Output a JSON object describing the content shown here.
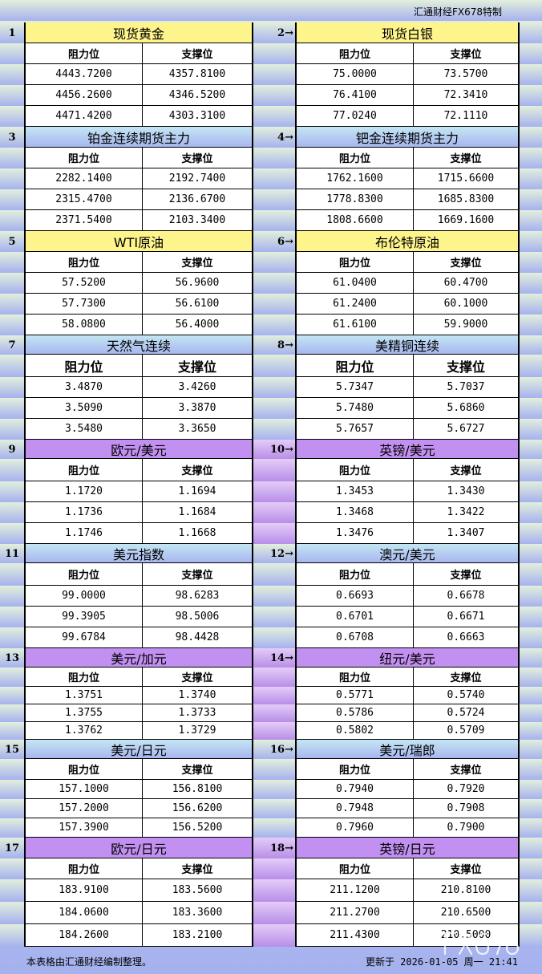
{
  "header": {
    "brand": "汇通财经FX678特制"
  },
  "col_headers": {
    "resistance": "阻力位",
    "support": "支撑位"
  },
  "colors": {
    "yellow": "#fdf48c",
    "blue": "#b4cef2",
    "purple": "#c290f0"
  },
  "blocks": [
    {
      "num": "1",
      "name": "现货黄金",
      "color": "yellow",
      "r": [
        "4443.7200",
        "4456.2600",
        "4471.4200"
      ],
      "s": [
        "4357.8100",
        "4346.5200",
        "4303.3100"
      ]
    },
    {
      "num": "2→",
      "name": "现货白银",
      "color": "yellow",
      "r": [
        "75.0000",
        "76.4100",
        "77.0240"
      ],
      "s": [
        "73.5700",
        "72.3410",
        "72.1110"
      ]
    },
    {
      "num": "3",
      "name": "铂金连续期货主力",
      "color": "blue",
      "r": [
        "2282.1400",
        "2315.4700",
        "2371.5400"
      ],
      "s": [
        "2192.7400",
        "2136.6700",
        "2103.3400"
      ]
    },
    {
      "num": "4→",
      "name": "钯金连续期货主力",
      "color": "blue",
      "r": [
        "1762.1600",
        "1778.8300",
        "1808.6600"
      ],
      "s": [
        "1715.6600",
        "1685.8300",
        "1669.1600"
      ]
    },
    {
      "num": "5",
      "name": "WTI原油",
      "color": "yellow",
      "r": [
        "57.5200",
        "57.7300",
        "58.0800"
      ],
      "s": [
        "56.9600",
        "56.6100",
        "56.4000"
      ]
    },
    {
      "num": "6→",
      "name": "布伦特原油",
      "color": "yellow",
      "r": [
        "61.0400",
        "61.2400",
        "61.6100"
      ],
      "s": [
        "60.4700",
        "60.1000",
        "59.9000"
      ]
    },
    {
      "num": "7",
      "name": "天然气连续",
      "color": "blue",
      "r": [
        "3.4870",
        "3.5090",
        "3.5480"
      ],
      "s": [
        "3.4260",
        "3.3870",
        "3.3650"
      ]
    },
    {
      "num": "8→",
      "name": "美精铜连续",
      "color": "blue",
      "r": [
        "5.7347",
        "5.7480",
        "5.7657"
      ],
      "s": [
        "5.7037",
        "5.6860",
        "5.6727"
      ]
    },
    {
      "num": "9",
      "name": "欧元/美元",
      "color": "purple",
      "r": [
        "1.1720",
        "1.1736",
        "1.1746"
      ],
      "s": [
        "1.1694",
        "1.1684",
        "1.1668"
      ]
    },
    {
      "num": "10→",
      "name": "英镑/美元",
      "color": "purple",
      "r": [
        "1.3453",
        "1.3468",
        "1.3476"
      ],
      "s": [
        "1.3430",
        "1.3422",
        "1.3407"
      ]
    },
    {
      "num": "11",
      "name": "美元指数",
      "color": "blue",
      "r": [
        "99.0000",
        "99.3905",
        "99.6784"
      ],
      "s": [
        "98.6283",
        "98.5006",
        "98.4428"
      ]
    },
    {
      "num": "12→",
      "name": "澳元/美元",
      "color": "blue",
      "r": [
        "0.6693",
        "0.6701",
        "0.6708"
      ],
      "s": [
        "0.6678",
        "0.6671",
        "0.6663"
      ]
    },
    {
      "num": "13",
      "name": "美元/加元",
      "color": "purple",
      "r": [
        "1.3751",
        "1.3755",
        "1.3762"
      ],
      "s": [
        "1.3740",
        "1.3733",
        "1.3729"
      ]
    },
    {
      "num": "14→",
      "name": "纽元/美元",
      "color": "purple",
      "r": [
        "0.5771",
        "0.5786",
        "0.5802"
      ],
      "s": [
        "0.5740",
        "0.5724",
        "0.5709"
      ]
    },
    {
      "num": "15",
      "name": "美元/日元",
      "color": "blue",
      "r": [
        "157.1000",
        "157.2000",
        "157.3900"
      ],
      "s": [
        "156.8100",
        "156.6200",
        "156.5200"
      ]
    },
    {
      "num": "16→",
      "name": "美元/瑞郎",
      "color": "blue",
      "r": [
        "0.7940",
        "0.7948",
        "0.7960"
      ],
      "s": [
        "0.7920",
        "0.7908",
        "0.7900"
      ]
    },
    {
      "num": "17",
      "name": "欧元/日元",
      "color": "purple",
      "r": [
        "183.9100",
        "184.0600",
        "184.2600"
      ],
      "s": [
        "183.5600",
        "183.3600",
        "183.2100"
      ]
    },
    {
      "num": "18→",
      "name": "英镑/日元",
      "color": "purple",
      "r": [
        "211.1200",
        "211.2700",
        "211.4300"
      ],
      "s": [
        "210.8100",
        "210.6500",
        "210.5000"
      ]
    }
  ],
  "footer": {
    "note": "本表格由汇通财经编制整理。",
    "updated": "更新于 2026-01-05 周一 21:41"
  },
  "watermark": "FX678"
}
